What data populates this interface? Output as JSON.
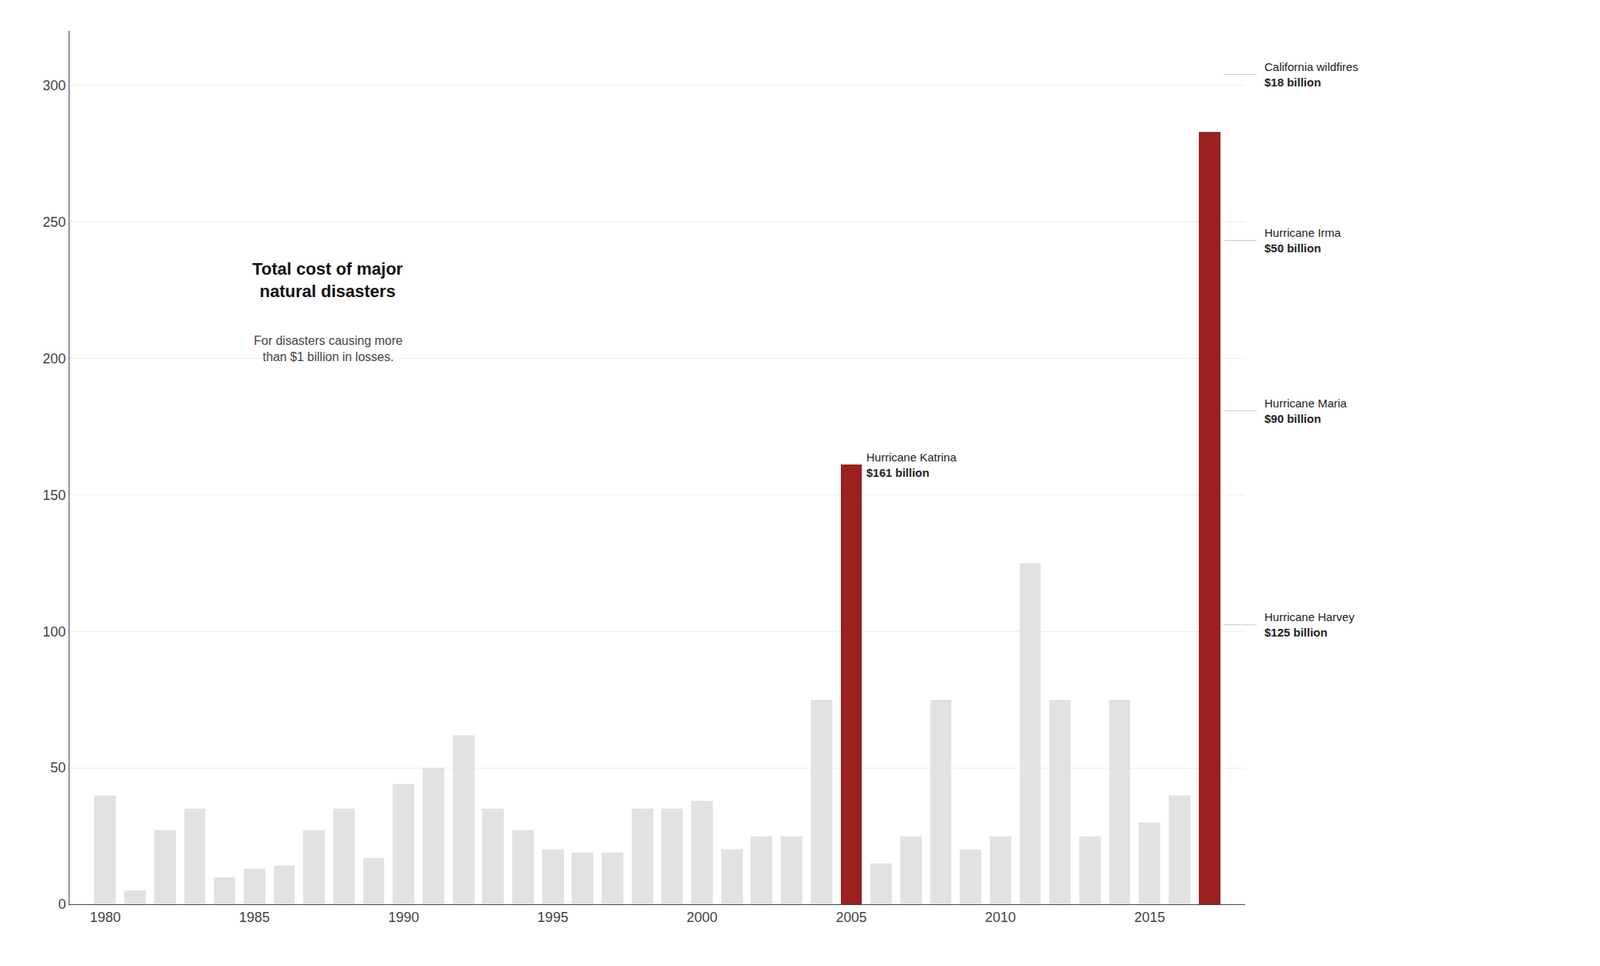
{
  "chart_data": {
    "type": "bar",
    "title": "Total cost of major\nnatural disasters",
    "subtitle": "For disasters causing more\nthan $1 billion in losses.",
    "x": [
      1980,
      1981,
      1982,
      1983,
      1984,
      1985,
      1986,
      1987,
      1988,
      1989,
      1990,
      1991,
      1992,
      1993,
      1994,
      1995,
      1996,
      1997,
      1998,
      1999,
      2000,
      2001,
      2002,
      2003,
      2004,
      2005,
      2006,
      2007,
      2008,
      2009,
      2010,
      2011,
      2012,
      2013,
      2014,
      2015,
      2016,
      2017
    ],
    "values": [
      40,
      5,
      27,
      35,
      10,
      13,
      14,
      27,
      35,
      17,
      44,
      50,
      62,
      35,
      27,
      20,
      19,
      19,
      35,
      35,
      38,
      20,
      25,
      25,
      75,
      161,
      15,
      25,
      75,
      20,
      25,
      125,
      75,
      25,
      75,
      30,
      40,
      283
    ],
    "colors": [
      "#E2E2E2",
      "#E2E2E2",
      "#E2E2E2",
      "#E2E2E2",
      "#E2E2E2",
      "#E2E2E2",
      "#E2E2E2",
      "#E2E2E2",
      "#E2E2E2",
      "#E2E2E2",
      "#E2E2E2",
      "#E2E2E2",
      "#E2E2E2",
      "#E2E2E2",
      "#E2E2E2",
      "#E2E2E2",
      "#E2E2E2",
      "#E2E2E2",
      "#E2E2E2",
      "#E2E2E2",
      "#E2E2E2",
      "#E2E2E2",
      "#E2E2E2",
      "#E2E2E2",
      "#E2E2E2",
      "#9B2020",
      "#E2E2E2",
      "#E2E2E2",
      "#E2E2E2",
      "#E2E2E2",
      "#E2E2E2",
      "#E2E2E2",
      "#E2E2E2",
      "#E2E2E2",
      "#E2E2E2",
      "#E2E2E2",
      "#E2E2E2",
      "#9B2020"
    ],
    "xlim": [
      1978.8,
      2018.2
    ],
    "xticks": [
      1980,
      1985,
      1990,
      1995,
      2000,
      2005,
      2010,
      2015
    ],
    "ylim": [
      0,
      320
    ],
    "yticks": [
      0,
      50,
      100,
      150,
      200,
      250,
      300
    ],
    "grid": true,
    "annotations": [
      {
        "x": 2005,
        "name": "Hurricane Katrina",
        "cost": "$161 billion"
      },
      {
        "x": 2017,
        "name": "California wildfires",
        "cost": "$18 billion"
      },
      {
        "x": 2017,
        "name": "Hurricane Irma",
        "cost": "$50 billion"
      },
      {
        "x": 2017,
        "name": "Hurricane Maria",
        "cost": "$90 billion"
      },
      {
        "x": 2017,
        "name": "Hurricane Harvey",
        "cost": "$125 billion"
      }
    ]
  }
}
